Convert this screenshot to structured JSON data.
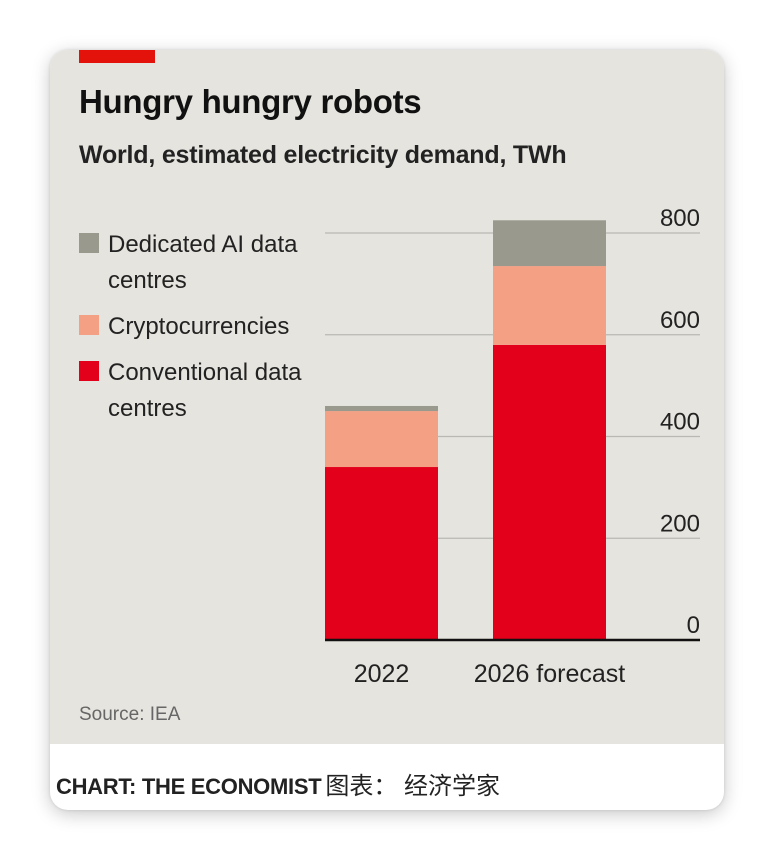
{
  "chart_data": {
    "type": "bar",
    "stacked": true,
    "title": "Hungry hungry robots",
    "subtitle": "World, estimated electricity demand, TWh",
    "categories": [
      "2022",
      "2026 forecast"
    ],
    "series": [
      {
        "name": "Conventional data centres",
        "color": "#e3001b",
        "values": [
          340,
          580
        ]
      },
      {
        "name": "Cryptocurrencies",
        "color": "#f4a084",
        "values": [
          110,
          155
        ]
      },
      {
        "name": "Dedicated AI data centres",
        "color": "#9a998d",
        "values": [
          10,
          90
        ]
      }
    ],
    "legend_order": [
      2,
      1,
      0
    ],
    "ylim": [
      0,
      800
    ],
    "yticks": [
      "0",
      "200",
      "400",
      "600",
      "800"
    ],
    "ytick_values": [
      0,
      200,
      400,
      600,
      800
    ],
    "grid": true,
    "source": "Source: IEA"
  },
  "legend": {
    "items": [
      {
        "label": "Dedicated AI data centres",
        "color": "#9a998d"
      },
      {
        "label": "Cryptocurrencies",
        "color": "#f4a084"
      },
      {
        "label": "Conventional data centres",
        "color": "#e3001b"
      }
    ]
  },
  "credit": {
    "en": "CHART: THE ECONOMIST",
    "cn": "图表： 经济学家"
  }
}
